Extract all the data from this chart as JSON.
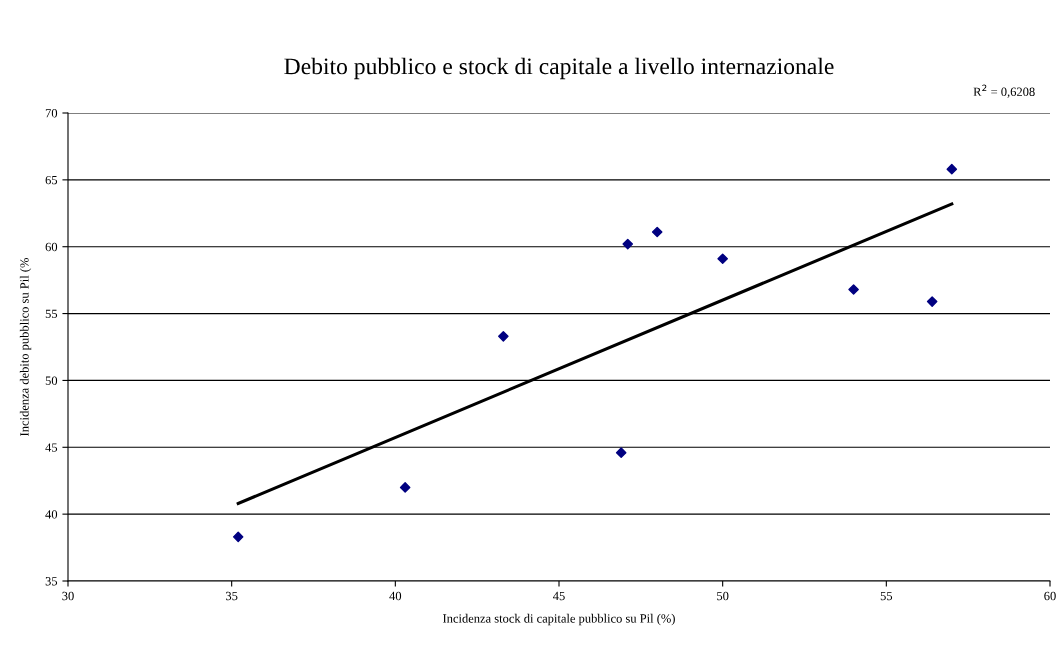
{
  "chart_data": {
    "type": "scatter",
    "title": "Debito pubblico e stock di capitale a livello internazionale",
    "xlabel": "Incidenza stock di capitale pubblico su Pil (%)",
    "ylabel": "Incidenza debito pubblico su Pil (%",
    "annotations": [
      "R$^{2}$ = 0,6208"
    ],
    "xlim": [
      30,
      60
    ],
    "xticks": [
      30,
      35,
      40,
      45,
      50,
      55,
      60
    ],
    "ylim": [
      35,
      70
    ],
    "yticks": [
      35,
      40,
      45,
      50,
      55,
      60,
      65,
      70
    ],
    "grid": "y",
    "marker": "diamond",
    "series": [
      {
        "color": "#000080",
        "x": [
          35.2,
          40.3,
          43.3,
          46.9,
          47.1,
          48.0,
          50.0,
          54.0,
          56.4,
          57.0
        ],
        "values": [
          38.3,
          42.0,
          53.3,
          44.6,
          60.2,
          61.1,
          59.1,
          56.8,
          55.9,
          65.8
        ]
      },
      {
        "type": "line",
        "color": "#000000",
        "marker": "none",
        "line_style": "solid",
        "x": [
          35.2,
          57.0
        ],
        "values": [
          40.8,
          63.2
        ]
      }
    ]
  }
}
